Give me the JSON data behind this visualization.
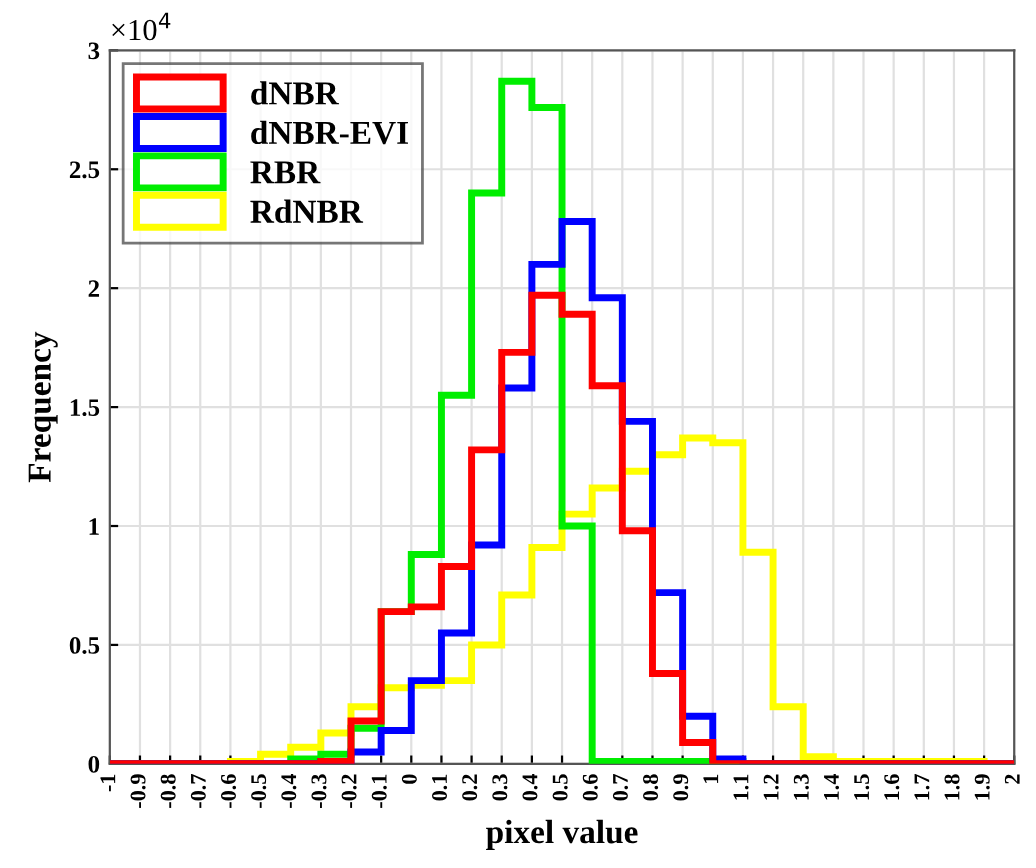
{
  "chart_data": {
    "type": "histogram",
    "xlabel": "pixel value",
    "ylabel": "Frequency",
    "bins": [
      -1,
      -0.9,
      -0.8,
      -0.7,
      -0.6,
      -0.5,
      -0.4,
      -0.3,
      -0.2,
      -0.1,
      0,
      0.1,
      0.2,
      0.3,
      0.4,
      0.5,
      0.6,
      0.7,
      0.8,
      0.9,
      1,
      1.1,
      1.2,
      1.3,
      1.4,
      1.5,
      1.6,
      1.7,
      1.8,
      1.9,
      2
    ],
    "series": [
      {
        "name": "dNBR",
        "color": "#ff0000",
        "values": [
          0,
          0,
          0,
          0,
          0,
          0,
          0,
          0.01,
          0.18,
          0.64,
          0.66,
          0.83,
          1.32,
          1.73,
          1.97,
          1.89,
          1.59,
          0.98,
          0.38,
          0.09,
          0,
          0,
          0,
          0,
          0,
          0,
          0,
          0,
          0,
          0
        ]
      },
      {
        "name": "dNBR-EVI",
        "color": "#0000ff",
        "values": [
          0,
          0,
          0,
          0,
          0,
          0,
          0,
          0.01,
          0.05,
          0.14,
          0.35,
          0.55,
          0.92,
          1.58,
          2.1,
          2.28,
          1.96,
          1.44,
          0.72,
          0.2,
          0.02,
          0,
          0,
          0,
          0,
          0,
          0,
          0,
          0,
          0
        ]
      },
      {
        "name": "RBR",
        "color": "#00ee00",
        "values": [
          0,
          0,
          0,
          0,
          0,
          0,
          0.02,
          0.04,
          0.15,
          0.64,
          0.88,
          1.55,
          2.4,
          2.87,
          2.76,
          1.0,
          0.01,
          0.01,
          0.01,
          0.01,
          0.01,
          0,
          0,
          0,
          0,
          0,
          0,
          0,
          0,
          0
        ]
      },
      {
        "name": "RdNBR",
        "color": "#ffff00",
        "values": [
          0,
          0,
          0,
          0,
          0.01,
          0.04,
          0.07,
          0.13,
          0.24,
          0.32,
          0.33,
          0.35,
          0.5,
          0.71,
          0.91,
          1.05,
          1.16,
          1.23,
          1.3,
          1.37,
          1.35,
          0.89,
          0.24,
          0.03,
          0.01,
          0.01,
          0.01,
          0.01,
          0.01,
          0
        ]
      }
    ],
    "xlim": [
      -1,
      2
    ],
    "xticks": [
      -1,
      -0.9,
      -0.8,
      -0.7,
      -0.6,
      -0.5,
      -0.4,
      -0.3,
      -0.2,
      -0.1,
      0,
      0.1,
      0.2,
      0.3,
      0.4,
      0.5,
      0.6,
      0.7,
      0.8,
      0.9,
      1,
      1.1,
      1.2,
      1.3,
      1.4,
      1.5,
      1.6,
      1.7,
      1.8,
      1.9,
      2
    ],
    "ylim": [
      0,
      3
    ],
    "yticks": [
      0,
      0.5,
      1,
      1.5,
      2,
      2.5,
      3
    ],
    "annotations": [
      "×10$^{4}$"
    ],
    "grid": true,
    "legend": "top left"
  }
}
